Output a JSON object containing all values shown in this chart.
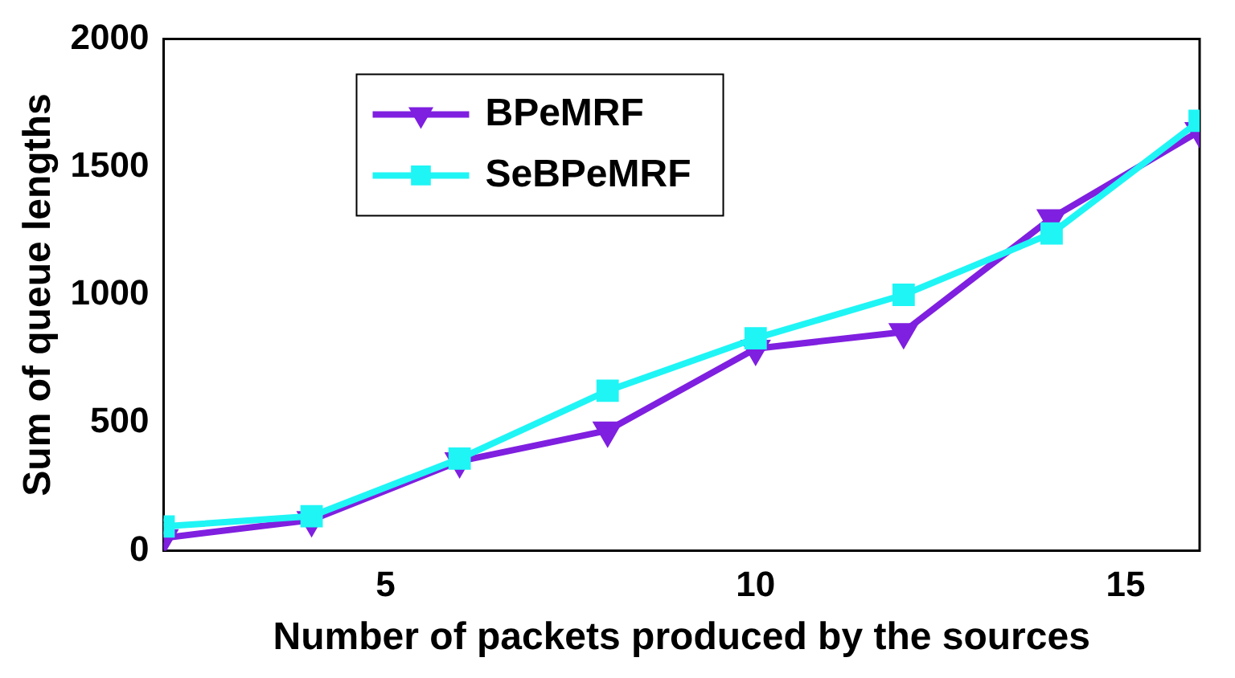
{
  "chart_data": {
    "type": "line",
    "xlabel": "Number of packets produced by the sources",
    "ylabel": "Sum of queue lengths",
    "x": [
      2,
      4,
      6,
      8,
      10,
      12,
      14,
      16
    ],
    "series": [
      {
        "name": "BPeMRF",
        "color": "#7f1fe0",
        "marker": "triangle",
        "values": [
          50,
          120,
          350,
          470,
          790,
          855,
          1300,
          1640
        ]
      },
      {
        "name": "SeBPeMRF",
        "color": "#1ff5f5",
        "marker": "square",
        "values": [
          95,
          135,
          360,
          625,
          830,
          1000,
          1240,
          1680
        ]
      }
    ],
    "xlim": [
      2,
      16
    ],
    "xticks": [
      5,
      10,
      15
    ],
    "ylim": [
      0,
      2000
    ],
    "yticks": [
      0,
      500,
      1000,
      1500,
      2000
    ],
    "grid": false,
    "legend": "top left",
    "line_style": "solid"
  }
}
